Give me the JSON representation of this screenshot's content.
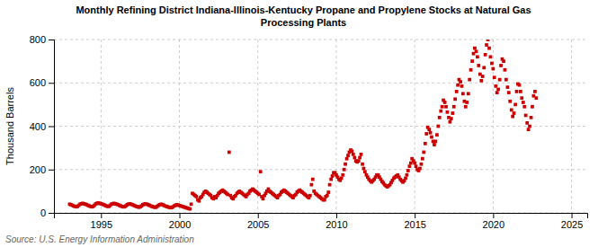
{
  "chart_data": {
    "type": "scatter",
    "title": "Monthly Refining District Indiana-Illinois-Kentucky Propane and Propylene Stocks at Natural Gas\nProcessing Plants",
    "y_label": "Thousand Barrels",
    "source": "Source: U.S. Energy Information Administration",
    "color": "#cc0000",
    "marker": "square",
    "grid": true,
    "xlim": [
      1992,
      2026
    ],
    "ylim": [
      0,
      800
    ],
    "xticks": [
      1995,
      2000,
      2005,
      2010,
      2015,
      2020,
      2025
    ],
    "yticks": [
      0,
      200,
      400,
      600,
      800
    ],
    "x": [
      1993.0,
      1993.08,
      1993.17,
      1993.25,
      1993.33,
      1993.42,
      1993.5,
      1993.58,
      1993.67,
      1993.75,
      1993.83,
      1993.92,
      1994.0,
      1994.08,
      1994.17,
      1994.25,
      1994.33,
      1994.42,
      1994.5,
      1994.58,
      1994.67,
      1994.75,
      1994.83,
      1994.92,
      1995.0,
      1995.08,
      1995.17,
      1995.25,
      1995.33,
      1995.42,
      1995.5,
      1995.58,
      1995.67,
      1995.75,
      1995.83,
      1995.92,
      1996.0,
      1996.08,
      1996.17,
      1996.25,
      1996.33,
      1996.42,
      1996.5,
      1996.58,
      1996.67,
      1996.75,
      1996.83,
      1996.92,
      1997.0,
      1997.08,
      1997.17,
      1997.25,
      1997.33,
      1997.42,
      1997.5,
      1997.58,
      1997.67,
      1997.75,
      1997.83,
      1997.92,
      1998.0,
      1998.08,
      1998.17,
      1998.25,
      1998.33,
      1998.42,
      1998.5,
      1998.58,
      1998.67,
      1998.75,
      1998.83,
      1998.92,
      1999.0,
      1999.08,
      1999.17,
      1999.25,
      1999.33,
      1999.42,
      1999.5,
      1999.58,
      1999.67,
      1999.75,
      1999.83,
      1999.92,
      2000.0,
      2000.08,
      2000.17,
      2000.25,
      2000.33,
      2000.42,
      2000.5,
      2000.58,
      2000.67,
      2000.75,
      2000.83,
      2000.92,
      2001.0,
      2001.08,
      2001.17,
      2001.25,
      2001.33,
      2001.42,
      2001.5,
      2001.58,
      2001.67,
      2001.75,
      2001.83,
      2001.92,
      2002.0,
      2002.08,
      2002.17,
      2002.25,
      2002.33,
      2002.42,
      2002.5,
      2002.58,
      2002.67,
      2002.75,
      2002.83,
      2002.92,
      2003.0,
      2003.08,
      2003.17,
      2003.25,
      2003.33,
      2003.42,
      2003.5,
      2003.58,
      2003.67,
      2003.75,
      2003.83,
      2003.92,
      2004.0,
      2004.08,
      2004.17,
      2004.25,
      2004.33,
      2004.42,
      2004.5,
      2004.58,
      2004.67,
      2004.75,
      2004.83,
      2004.92,
      2005.0,
      2005.08,
      2005.17,
      2005.25,
      2005.33,
      2005.42,
      2005.5,
      2005.58,
      2005.67,
      2005.75,
      2005.83,
      2005.92,
      2006.0,
      2006.08,
      2006.17,
      2006.25,
      2006.33,
      2006.42,
      2006.5,
      2006.58,
      2006.67,
      2006.75,
      2006.83,
      2006.92,
      2007.0,
      2007.08,
      2007.17,
      2007.25,
      2007.33,
      2007.42,
      2007.5,
      2007.58,
      2007.67,
      2007.75,
      2007.83,
      2007.92,
      2008.0,
      2008.08,
      2008.17,
      2008.25,
      2008.33,
      2008.42,
      2008.5,
      2008.58,
      2008.67,
      2008.75,
      2008.83,
      2008.92,
      2009.0,
      2009.08,
      2009.17,
      2009.25,
      2009.33,
      2009.42,
      2009.5,
      2009.58,
      2009.67,
      2009.75,
      2009.83,
      2009.92,
      2010.0,
      2010.08,
      2010.17,
      2010.25,
      2010.33,
      2010.42,
      2010.5,
      2010.58,
      2010.67,
      2010.75,
      2010.83,
      2010.92,
      2011.0,
      2011.08,
      2011.17,
      2011.25,
      2011.33,
      2011.42,
      2011.5,
      2011.58,
      2011.67,
      2011.75,
      2011.83,
      2011.92,
      2012.0,
      2012.08,
      2012.17,
      2012.25,
      2012.33,
      2012.42,
      2012.5,
      2012.58,
      2012.67,
      2012.75,
      2012.83,
      2012.92,
      2013.0,
      2013.08,
      2013.17,
      2013.25,
      2013.33,
      2013.42,
      2013.5,
      2013.58,
      2013.67,
      2013.75,
      2013.83,
      2013.92,
      2014.0,
      2014.08,
      2014.17,
      2014.25,
      2014.33,
      2014.42,
      2014.5,
      2014.58,
      2014.67,
      2014.75,
      2014.83,
      2014.92,
      2015.0,
      2015.08,
      2015.17,
      2015.25,
      2015.33,
      2015.42,
      2015.5,
      2015.58,
      2015.67,
      2015.75,
      2015.83,
      2015.92,
      2016.0,
      2016.08,
      2016.17,
      2016.25,
      2016.33,
      2016.42,
      2016.5,
      2016.58,
      2016.67,
      2016.75,
      2016.83,
      2016.92,
      2017.0,
      2017.08,
      2017.17,
      2017.25,
      2017.33,
      2017.42,
      2017.5,
      2017.58,
      2017.67,
      2017.75,
      2017.83,
      2017.92,
      2018.0,
      2018.08,
      2018.17,
      2018.25,
      2018.33,
      2018.42,
      2018.5,
      2018.58,
      2018.67,
      2018.75,
      2018.83,
      2018.92,
      2019.0,
      2019.08,
      2019.17,
      2019.25,
      2019.33,
      2019.42,
      2019.5,
      2019.58,
      2019.67,
      2019.75,
      2019.83,
      2019.92,
      2020.0,
      2020.08,
      2020.17,
      2020.25,
      2020.33,
      2020.42,
      2020.5,
      2020.58,
      2020.67,
      2020.75,
      2020.83,
      2020.92,
      2021.0,
      2021.08,
      2021.17,
      2021.25,
      2021.33,
      2021.42,
      2021.5,
      2021.58,
      2021.67,
      2021.75,
      2021.83,
      2021.92,
      2022.0,
      2022.08,
      2022.17,
      2022.25,
      2022.33,
      2022.42,
      2022.5,
      2022.58,
      2022.67,
      2022.75
    ],
    "values": [
      40,
      38,
      35,
      32,
      30,
      28,
      30,
      35,
      40,
      42,
      44,
      42,
      40,
      38,
      35,
      32,
      30,
      28,
      30,
      35,
      42,
      44,
      46,
      44,
      42,
      40,
      38,
      35,
      32,
      30,
      30,
      35,
      40,
      42,
      44,
      42,
      40,
      38,
      35,
      32,
      30,
      28,
      28,
      32,
      38,
      40,
      42,
      40,
      38,
      35,
      32,
      30,
      28,
      26,
      28,
      32,
      38,
      40,
      42,
      40,
      38,
      35,
      32,
      30,
      28,
      26,
      26,
      30,
      35,
      38,
      40,
      38,
      35,
      32,
      30,
      28,
      26,
      24,
      24,
      28,
      32,
      35,
      38,
      36,
      34,
      32,
      30,
      28,
      26,
      24,
      22,
      20,
      18,
      40,
      90,
      85,
      80,
      75,
      60,
      55,
      70,
      75,
      85,
      95,
      100,
      95,
      90,
      85,
      80,
      70,
      65,
      75,
      70,
      80,
      90,
      95,
      100,
      105,
      100,
      95,
      90,
      85,
      280,
      80,
      70,
      65,
      75,
      80,
      90,
      95,
      100,
      95,
      90,
      85,
      80,
      75,
      85,
      90,
      100,
      105,
      110,
      105,
      100,
      95,
      90,
      85,
      190,
      75,
      65,
      80,
      90,
      100,
      110,
      100,
      95,
      90,
      85,
      80,
      75,
      70,
      80,
      85,
      95,
      100,
      105,
      100,
      95,
      90,
      85,
      80,
      75,
      70,
      80,
      85,
      95,
      100,
      105,
      100,
      95,
      90,
      85,
      80,
      75,
      70,
      80,
      130,
      155,
      100,
      90,
      85,
      80,
      75,
      70,
      65,
      60,
      60,
      75,
      80,
      95,
      130,
      155,
      170,
      185,
      185,
      175,
      165,
      155,
      150,
      160,
      175,
      200,
      225,
      250,
      265,
      280,
      290,
      285,
      270,
      255,
      240,
      235,
      240,
      255,
      270,
      225,
      205,
      190,
      175,
      165,
      155,
      148,
      142,
      148,
      155,
      165,
      175,
      175,
      165,
      155,
      145,
      138,
      130,
      125,
      120,
      125,
      130,
      140,
      150,
      160,
      165,
      170,
      175,
      165,
      155,
      148,
      142,
      148,
      160,
      175,
      195,
      215,
      230,
      250,
      240,
      230,
      215,
      200,
      195,
      205,
      225,
      250,
      280,
      320,
      365,
      395,
      385,
      370,
      350,
      330,
      315,
      330,
      360,
      400,
      440,
      470,
      490,
      520,
      510,
      490,
      465,
      440,
      420,
      435,
      460,
      490,
      525,
      560,
      590,
      615,
      605,
      585,
      550,
      515,
      490,
      510,
      550,
      615,
      660,
      700,
      735,
      760,
      745,
      720,
      680,
      640,
      610,
      630,
      670,
      730,
      775,
      800,
      760,
      720,
      690,
      665,
      625,
      585,
      555,
      570,
      615,
      680,
      710,
      700,
      660,
      615,
      580,
      555,
      515,
      475,
      445,
      460,
      500,
      560,
      595,
      590,
      560,
      530,
      510,
      490,
      450,
      415,
      385,
      400,
      440,
      490,
      540,
      560,
      530
    ]
  }
}
